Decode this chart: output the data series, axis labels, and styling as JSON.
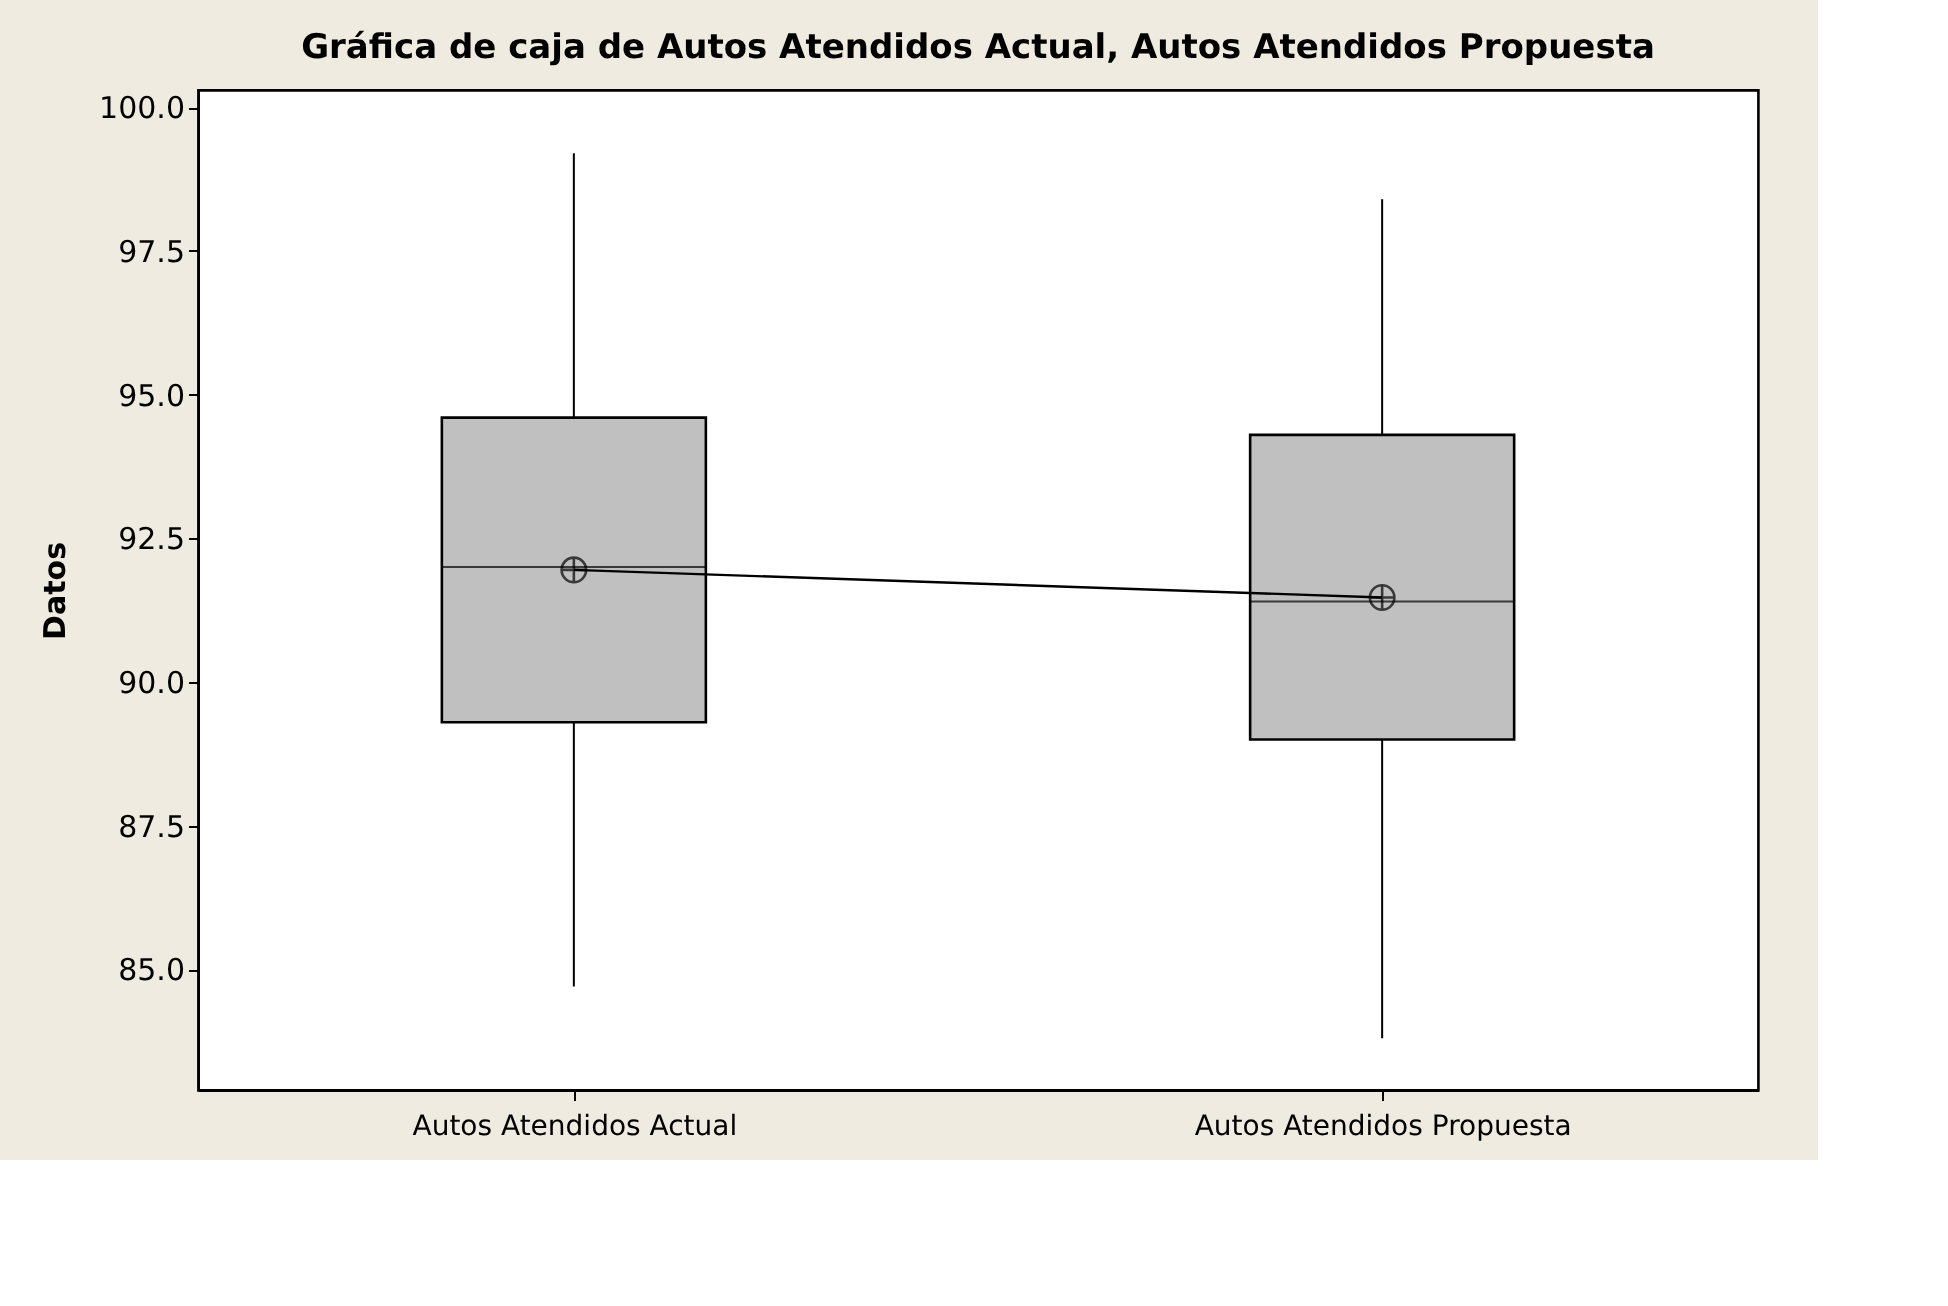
{
  "chart_data": {
    "type": "box",
    "title": "Gráfica de caja de Autos Atendidos Actual, Autos Atendidos Propuesta",
    "ylabel": "Datos",
    "categories": [
      "Autos Atendidos Actual",
      "Autos Atendidos Propuesta"
    ],
    "boxes": [
      {
        "low": 84.7,
        "q1": 89.3,
        "median": 92.0,
        "q3": 94.6,
        "high": 99.2,
        "mean": 91.95
      },
      {
        "low": 83.8,
        "q1": 89.0,
        "median": 91.4,
        "q3": 94.3,
        "high": 98.4,
        "mean": 91.47
      }
    ],
    "series": [
      {
        "type": "line",
        "color": "#000000",
        "values": [
          91.95,
          91.47
        ]
      }
    ],
    "color": "#c0c0c0",
    "ylim": [
      82.9,
      100.3
    ],
    "yticks": [
      {
        "value": 85,
        "label": "85.0"
      },
      {
        "value": 87.5,
        "label": "87.5"
      },
      {
        "value": 90,
        "label": "90.0"
      },
      {
        "value": 92.5,
        "label": "92.5"
      },
      {
        "value": 95,
        "label": "95.0"
      },
      {
        "value": 97.5,
        "label": "97.5"
      },
      {
        "value": 100,
        "label": "100.0"
      }
    ],
    "grid": false
  }
}
